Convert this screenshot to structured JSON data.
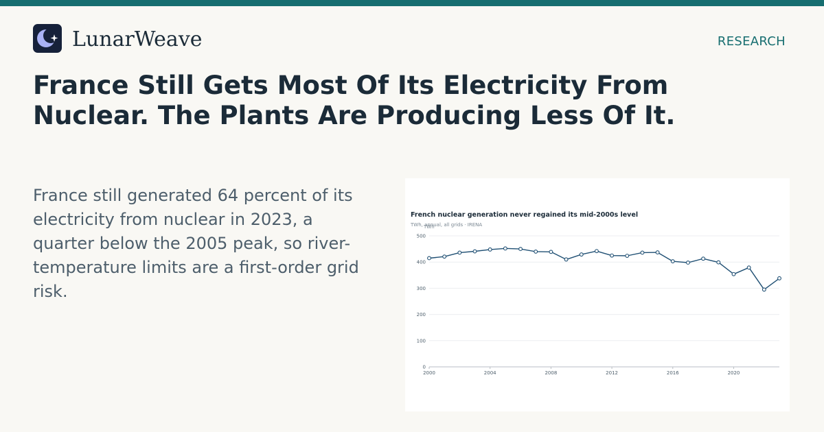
{
  "brand": {
    "name": "LunarWeave",
    "section": "RESEARCH",
    "logo_icon": "moon-star-icon"
  },
  "article": {
    "headline": "France Still Gets Most Of Its Electricity From Nuclear. The Plants Are Producing Less Of It.",
    "dek": "France still generated 64 percent of its electricity from nuclear in 2023, a quarter below the 2005 peak, so river-temperature limits are a first-order grid risk."
  },
  "colors": {
    "accent": "#176e70",
    "line": "#1f4f73",
    "background": "#f9f8f4"
  },
  "chart_data": {
    "type": "line",
    "title": "French nuclear generation never regained its mid-2000s level",
    "subtitle": "TWh, annual, all grids · IRENA",
    "ylabel": "TWh",
    "xlabel": "",
    "ylim": [
      0,
      500
    ],
    "xlim": [
      2000,
      2023
    ],
    "yticks": [
      0,
      100,
      200,
      300,
      400,
      500
    ],
    "xticks": [
      2000,
      2004,
      2008,
      2012,
      2016,
      2020
    ],
    "grid": true,
    "x": [
      2000,
      2001,
      2002,
      2003,
      2004,
      2005,
      2006,
      2007,
      2008,
      2009,
      2010,
      2011,
      2012,
      2013,
      2014,
      2015,
      2016,
      2017,
      2018,
      2019,
      2020,
      2021,
      2022,
      2023
    ],
    "series": [
      {
        "values": [
          415,
          421,
          436,
          441,
          448,
          452,
          450,
          440,
          439,
          410,
          429,
          442,
          425,
          424,
          436,
          437,
          403,
          398,
          413,
          399,
          354,
          379,
          295,
          338
        ]
      }
    ]
  }
}
